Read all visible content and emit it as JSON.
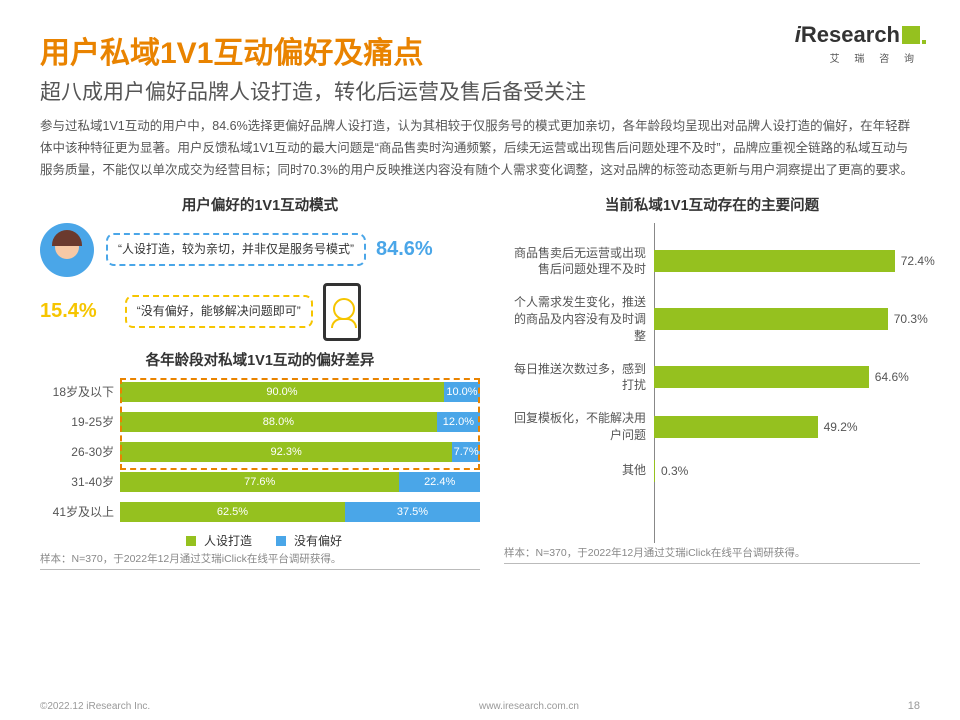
{
  "logo": {
    "name_prefix": "i",
    "name_rest": "Research",
    "sub": "艾 瑞 咨 询"
  },
  "title": "用户私域1V1互动偏好及痛点",
  "subtitle": "超八成用户偏好品牌人设打造，转化后运营及售后备受关注",
  "body": "参与过私域1V1互动的用户中，84.6%选择更偏好品牌人设打造，认为其相较于仅服务号的模式更加亲切，各年龄段均呈现出对品牌人设打造的偏好，在年轻群体中该种特征更为显著。用户反馈私域1V1互动的最大问题是“商品售卖时沟通频繁，后续无运营或出现售后问题处理不及时”，品牌应重视全链路的私域互动与服务质量，不能仅以单次成交为经营目标；同时70.3%的用户反映推送内容没有随个人需求变化调整，这对品牌的标签动态更新与用户洞察提出了更高的要求。",
  "pref": {
    "title": "用户偏好的1V1互动模式",
    "a_text": "“人设打造，较为亲切，并非仅是服务号模式”",
    "a_pct": "84.6%",
    "b_text": "“没有偏好，能够解决问题即可”",
    "b_pct": "15.4%",
    "color_blue": "#4aa6e8",
    "color_yellow": "#f6c500"
  },
  "stack": {
    "title": "各年龄段对私域1V1互动的偏好差异",
    "categories": [
      "18岁及以下",
      "19-25岁",
      "26-30岁",
      "31-40岁",
      "41岁及以上"
    ],
    "seriesA": {
      "name": "人设打造",
      "values": [
        90.0,
        88.0,
        92.3,
        77.6,
        62.5
      ],
      "color": "#95c11f"
    },
    "seriesB": {
      "name": "没有偏好",
      "values": [
        10.0,
        12.0,
        7.7,
        22.4,
        37.5
      ],
      "color": "#4aa6e8"
    },
    "highlight_rows": [
      0,
      2
    ],
    "highlight_color": "#e98300"
  },
  "hbar": {
    "title": "当前私域1V1互动存在的主要问题",
    "max": 80,
    "items": [
      {
        "label": "商品售卖后无运营或出现售后问题处理不及时",
        "value": 72.4
      },
      {
        "label": "个人需求发生变化，推送的商品及内容没有及时调整",
        "value": 70.3
      },
      {
        "label": "每日推送次数过多，感到打扰",
        "value": 64.6
      },
      {
        "label": "回复模板化，不能解决用户问题",
        "value": 49.2
      },
      {
        "label": "其他",
        "value": 0.3
      }
    ],
    "color": "#95c11f"
  },
  "note_left": "样本：N=370，于2022年12月通过艾瑞iClick在线平台调研获得。",
  "note_right": "样本：N=370，于2022年12月通过艾瑞iClick在线平台调研获得。",
  "footer": {
    "copyright": "©2022.12 iResearch Inc.",
    "url": "www.iresearch.com.cn",
    "page": "18"
  }
}
